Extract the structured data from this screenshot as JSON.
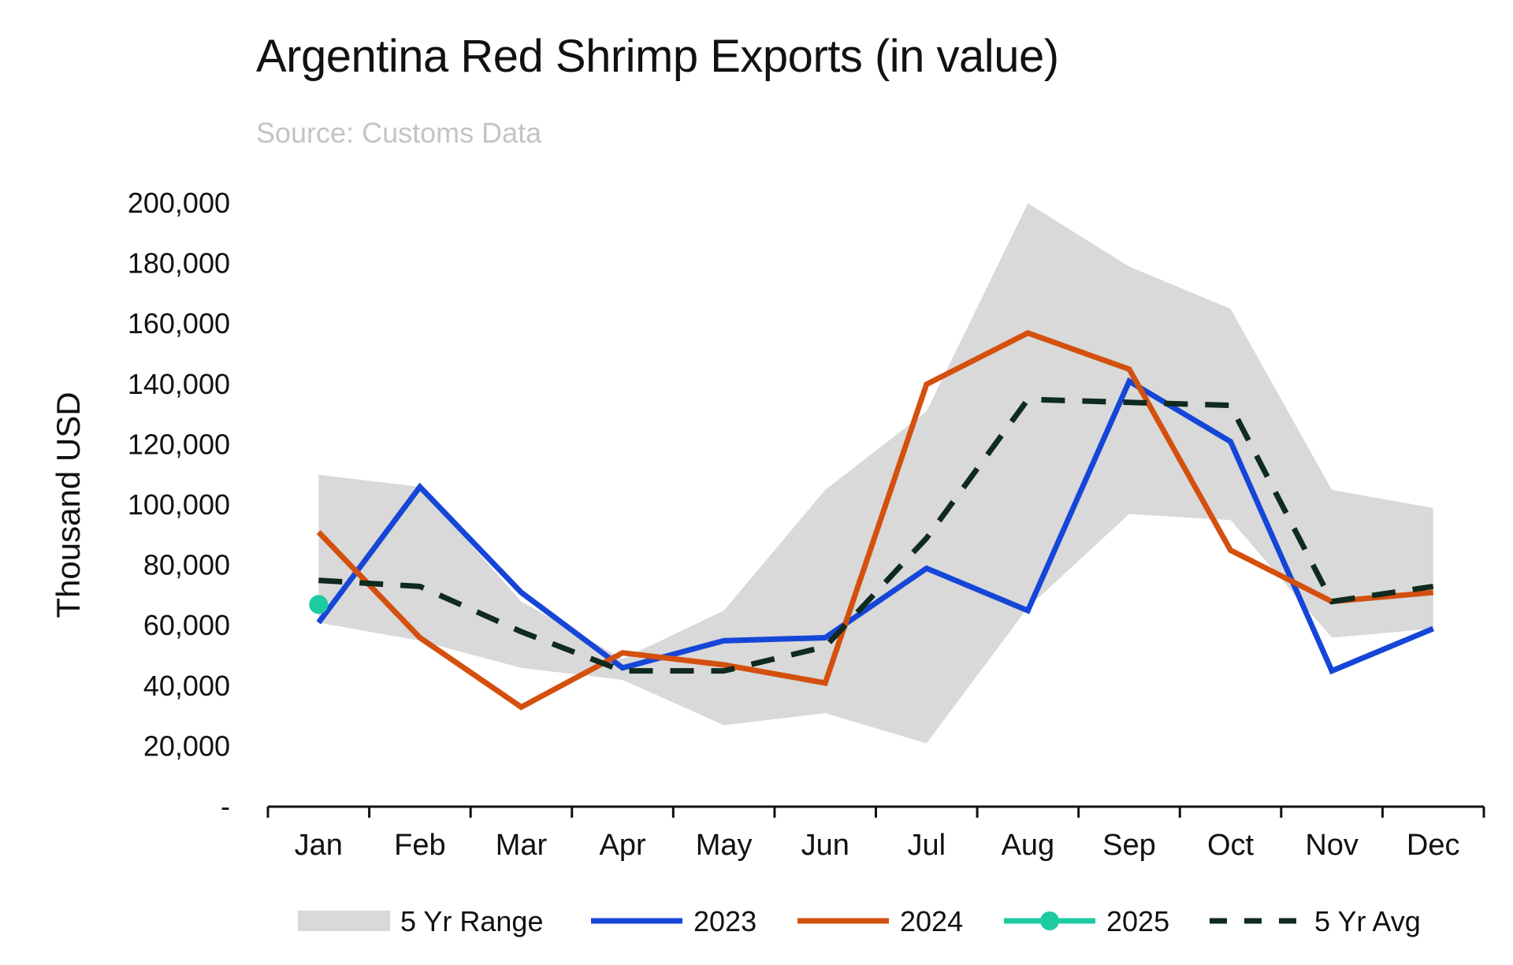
{
  "title": "Argentina Red Shrimp Exports (in value)",
  "subtitle": "Source: Customs Data",
  "chart_data": {
    "type": "line",
    "title": "Argentina Red Shrimp Exports (in value)",
    "ylabel": "Thousand USD",
    "xlabel": "",
    "ylim": [
      0,
      200000
    ],
    "ytick_labels": [
      "-",
      "20,000",
      "40,000",
      "60,000",
      "80,000",
      "100,000",
      "120,000",
      "140,000",
      "160,000",
      "180,000",
      "200,000"
    ],
    "categories": [
      "Jan",
      "Feb",
      "Mar",
      "Apr",
      "May",
      "Jun",
      "Jul",
      "Aug",
      "Sep",
      "Oct",
      "Nov",
      "Dec"
    ],
    "range": {
      "name": "5 Yr Range",
      "low": [
        61000,
        55000,
        46000,
        42000,
        27000,
        31000,
        21000,
        66000,
        97000,
        95000,
        56000,
        59000
      ],
      "high": [
        110000,
        106000,
        68000,
        49000,
        65000,
        105000,
        131000,
        200000,
        179000,
        165000,
        105000,
        99000
      ],
      "color": "#d9d9d9"
    },
    "series": [
      {
        "name": "2023",
        "color": "#1646d8",
        "values": [
          61000,
          106000,
          71000,
          46000,
          55000,
          56000,
          79000,
          65000,
          141000,
          121000,
          45000,
          59000
        ]
      },
      {
        "name": "2024",
        "color": "#d4500e",
        "values": [
          91000,
          56000,
          33000,
          51000,
          47000,
          41000,
          140000,
          157000,
          145000,
          85000,
          68000,
          71000
        ]
      },
      {
        "name": "2025",
        "color": "#1dcba2",
        "values": [
          67000,
          null,
          null,
          null,
          null,
          null,
          null,
          null,
          null,
          null,
          null,
          null
        ]
      },
      {
        "name": "5 Yr Avg",
        "color": "#0f2a1e",
        "dashed": true,
        "values": [
          75000,
          73000,
          58000,
          45000,
          45000,
          53000,
          89000,
          135000,
          134000,
          133000,
          68000,
          73000
        ]
      }
    ],
    "legend": [
      "5 Yr Range",
      "2023",
      "2024",
      "2025",
      "5 Yr Avg"
    ],
    "legend_position": "bottom",
    "grid": false
  }
}
